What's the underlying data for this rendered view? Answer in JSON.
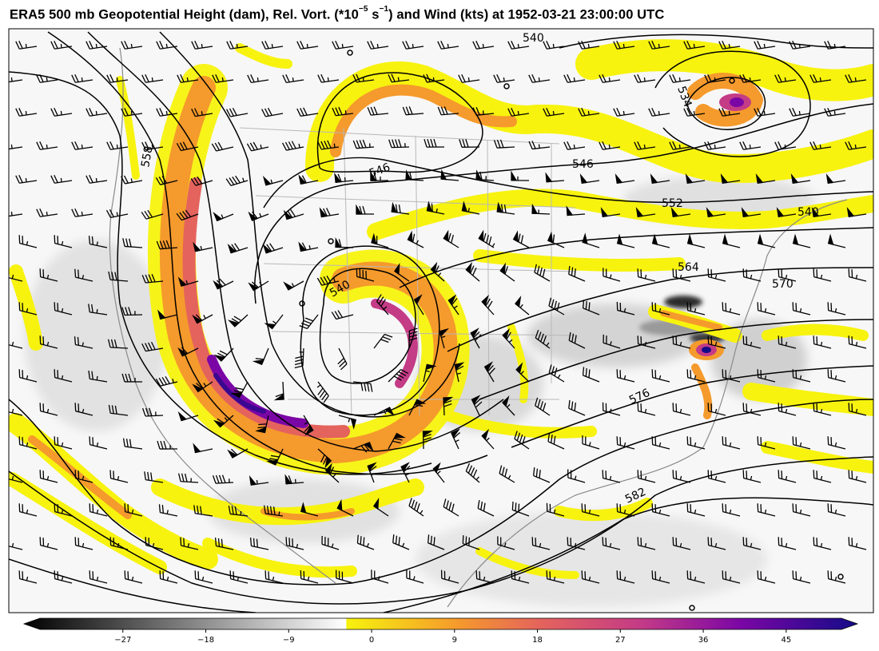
{
  "title": {
    "prefix": "ERA5 500 mb Geopotential Height (dam), Rel. Vort. (*10",
    "exp1": "−5",
    "mid": " s",
    "exp2": "−1",
    "suffix": ") and Wind (kts) at 1952-03-21 23:00:00 UTC"
  },
  "contour_labels": [
    "540",
    "546",
    "552",
    "558",
    "564",
    "570",
    "576",
    "582",
    "546",
    "540",
    "534",
    "540"
  ],
  "colorbar": {
    "ticks": [
      "−27",
      "−18",
      "−9",
      "0",
      "9",
      "18",
      "27",
      "36",
      "45"
    ],
    "min": -36,
    "max": 51,
    "negative_colors": [
      "#000000",
      "#ffffff"
    ],
    "positive_colors": [
      "#f7f30e",
      "#f59a2c",
      "#e4635d",
      "#c43b86",
      "#7b06a6",
      "#140b88"
    ]
  },
  "colors": {
    "contour": "#000000",
    "coastline": "#8a8a8a",
    "state_border": "#a8a8a8"
  }
}
